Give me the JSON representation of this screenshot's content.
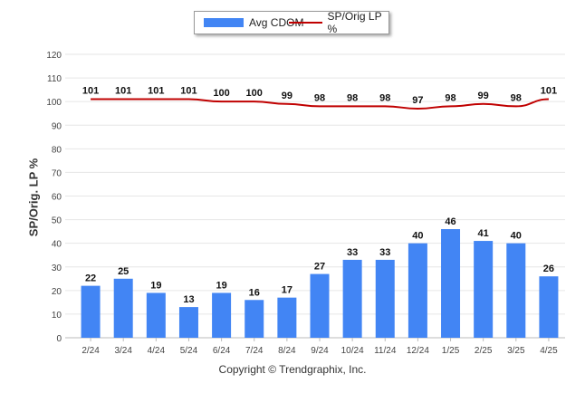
{
  "chart_data": {
    "type": "bar",
    "categories": [
      "2/24",
      "3/24",
      "4/24",
      "5/24",
      "6/24",
      "7/24",
      "8/24",
      "9/24",
      "10/24",
      "11/24",
      "12/24",
      "1/25",
      "2/25",
      "3/25",
      "4/25"
    ],
    "series": [
      {
        "name": "Avg CDOM",
        "type": "bar",
        "color": "#4285f4",
        "values": [
          22,
          25,
          19,
          13,
          19,
          16,
          17,
          27,
          33,
          33,
          40,
          46,
          41,
          40,
          26
        ]
      },
      {
        "name": "SP/Orig LP %",
        "type": "line",
        "color": "#c00000",
        "values": [
          101,
          101,
          101,
          101,
          100,
          100,
          99,
          98,
          98,
          98,
          97,
          98,
          99,
          98,
          101
        ]
      }
    ],
    "ylabel": "SP/Orig. LP %",
    "ylim": [
      0,
      120
    ],
    "yticks": [
      0,
      10,
      20,
      30,
      40,
      50,
      60,
      70,
      80,
      90,
      100,
      110,
      120
    ],
    "grid": true,
    "legend_position": "top-center"
  },
  "footer": {
    "copyright": "Copyright © Trendgraphix, Inc."
  }
}
